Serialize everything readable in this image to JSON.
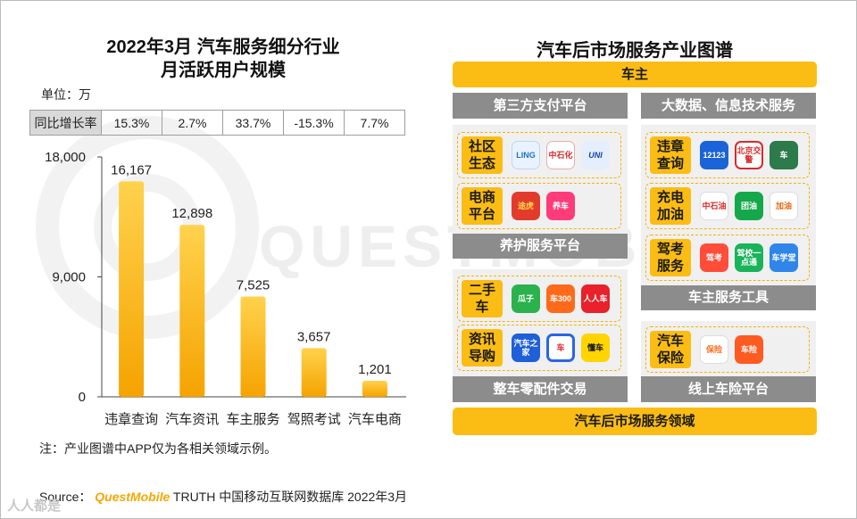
{
  "left": {
    "title_line1": "2022年3月 汽车服务细分行业",
    "title_line2": "月活跃用户规模",
    "unit": "单位：万",
    "yoy": {
      "header": "同比增长率",
      "values": [
        "15.3%",
        "2.7%",
        "33.7%",
        "-15.3%",
        "7.7%"
      ]
    },
    "note": "注：产业图谱中APP仅为各相关领域示例。"
  },
  "chart_data": {
    "type": "bar",
    "title": "2022年3月 汽车服务细分行业 月活跃用户规模",
    "ylabel": "单位：万",
    "categories": [
      "违章查询",
      "汽车资讯",
      "车主服务",
      "驾照考试",
      "汽车电商"
    ],
    "values": [
      16167,
      12898,
      7525,
      3657,
      1201
    ],
    "value_labels": [
      "16,167",
      "12,898",
      "7,525",
      "3,657",
      "1,201"
    ],
    "ylim": [
      0,
      18000
    ],
    "yticks": [
      0,
      9000,
      18000
    ],
    "ytick_labels": [
      "0",
      "9,000",
      "18,000"
    ],
    "grid": false,
    "bar_color_top": "#ffd24d",
    "bar_color_bottom": "#f5a300"
  },
  "right": {
    "title": "汽车后市场服务产业图谱",
    "top_bar": "车主",
    "bottom_bar": "汽车后市场服务领域",
    "left_header": "第三方支付平台",
    "right_header": "大数据、信息技术服务",
    "left_mid_bar": "养护服务平台",
    "left_bottom_bar": "整车零配件交易",
    "right_mid_bar": "车主服务工具",
    "right_bottom_bar": "线上车险平台",
    "categories": {
      "social": {
        "line1": "社区",
        "line2": "生态",
        "apps": [
          "LING",
          "中石化",
          "UNI"
        ]
      },
      "ecommerce": {
        "line1": "电商",
        "line2": "平台",
        "apps": [
          "途虎",
          "养车"
        ]
      },
      "used": {
        "line1": "二手",
        "line2": "车",
        "apps": [
          "瓜子",
          "车300",
          "人人车"
        ]
      },
      "news": {
        "line1": "资讯",
        "line2": "导购",
        "apps": [
          "汽车之家",
          "车",
          "懂车"
        ]
      },
      "violation": {
        "line1": "违章",
        "line2": "查询",
        "apps": [
          "12123",
          "北京交警",
          "车"
        ]
      },
      "fuel": {
        "line1": "充电",
        "line2": "加油",
        "apps": [
          "中石油",
          "团油",
          "加油"
        ]
      },
      "driving": {
        "line1": "驾考",
        "line2": "服务",
        "apps": [
          "驾考",
          "驾校一点通",
          "车学堂"
        ]
      },
      "insurance": {
        "line1": "汽车",
        "line2": "保险",
        "apps": [
          "保险",
          "车险"
        ]
      }
    }
  },
  "source": {
    "prefix": "Source：",
    "brand": "QuestMobile",
    "rest": "TRUTH 中国移动互联网数据库 2022年3月"
  },
  "watermark": "QUESTMOBILE",
  "corner_logo": "人人都是"
}
